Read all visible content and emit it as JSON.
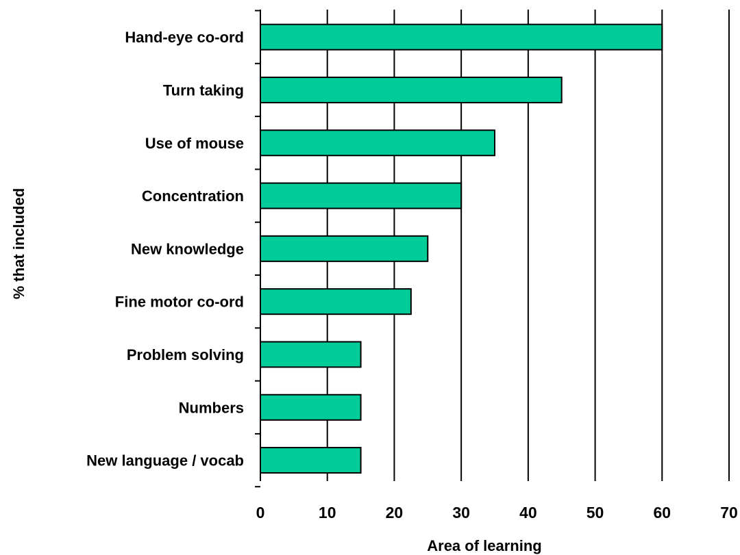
{
  "chart_data": {
    "type": "bar",
    "orientation": "horizontal",
    "title": "",
    "xlabel": "Area of learning",
    "ylabel": "% that included",
    "categories": [
      "Hand-eye co-ord",
      "Turn taking",
      "Use of mouse",
      "Concentration",
      "New knowledge",
      "Fine motor co-ord",
      "Problem solving",
      "Numbers",
      "New language / vocab"
    ],
    "values": [
      60,
      45,
      35,
      30,
      25,
      22.5,
      15,
      15,
      15
    ],
    "xlim": [
      0,
      70
    ],
    "x_ticks": [
      0,
      10,
      20,
      30,
      40,
      50,
      60,
      70
    ],
    "x_tick_labels": [
      "0",
      "10",
      "20",
      "30",
      "40",
      "50",
      "60",
      "70"
    ],
    "grid": "vertical",
    "legend": "none",
    "colors": {
      "bar_fill": "#00CC99",
      "bar_stroke": "#000000",
      "grid": "#000000",
      "axis": "#000000"
    }
  }
}
